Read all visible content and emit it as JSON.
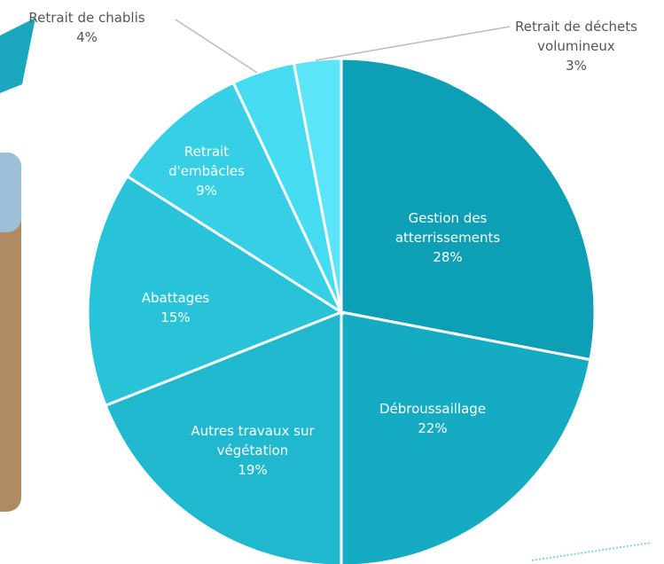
{
  "chart_data": {
    "type": "pie",
    "categories": [
      "Gestion des atterrissements",
      "Débroussaillage",
      "Autres travaux sur végétation",
      "Abattages",
      "Retrait d'embâcles",
      "Retrait de chablis",
      "Retrait de déchets volumineux"
    ],
    "values": [
      28,
      22,
      19,
      15,
      9,
      4,
      3
    ],
    "value_labels": [
      "28%",
      "22%",
      "19%",
      "15%",
      "9%",
      "4%",
      "3%"
    ],
    "colors": [
      "#0c9fb6",
      "#15acc3",
      "#1fb8ce",
      "#29c3d9",
      "#36cfe5",
      "#45dbf1",
      "#5ae5f8"
    ]
  }
}
